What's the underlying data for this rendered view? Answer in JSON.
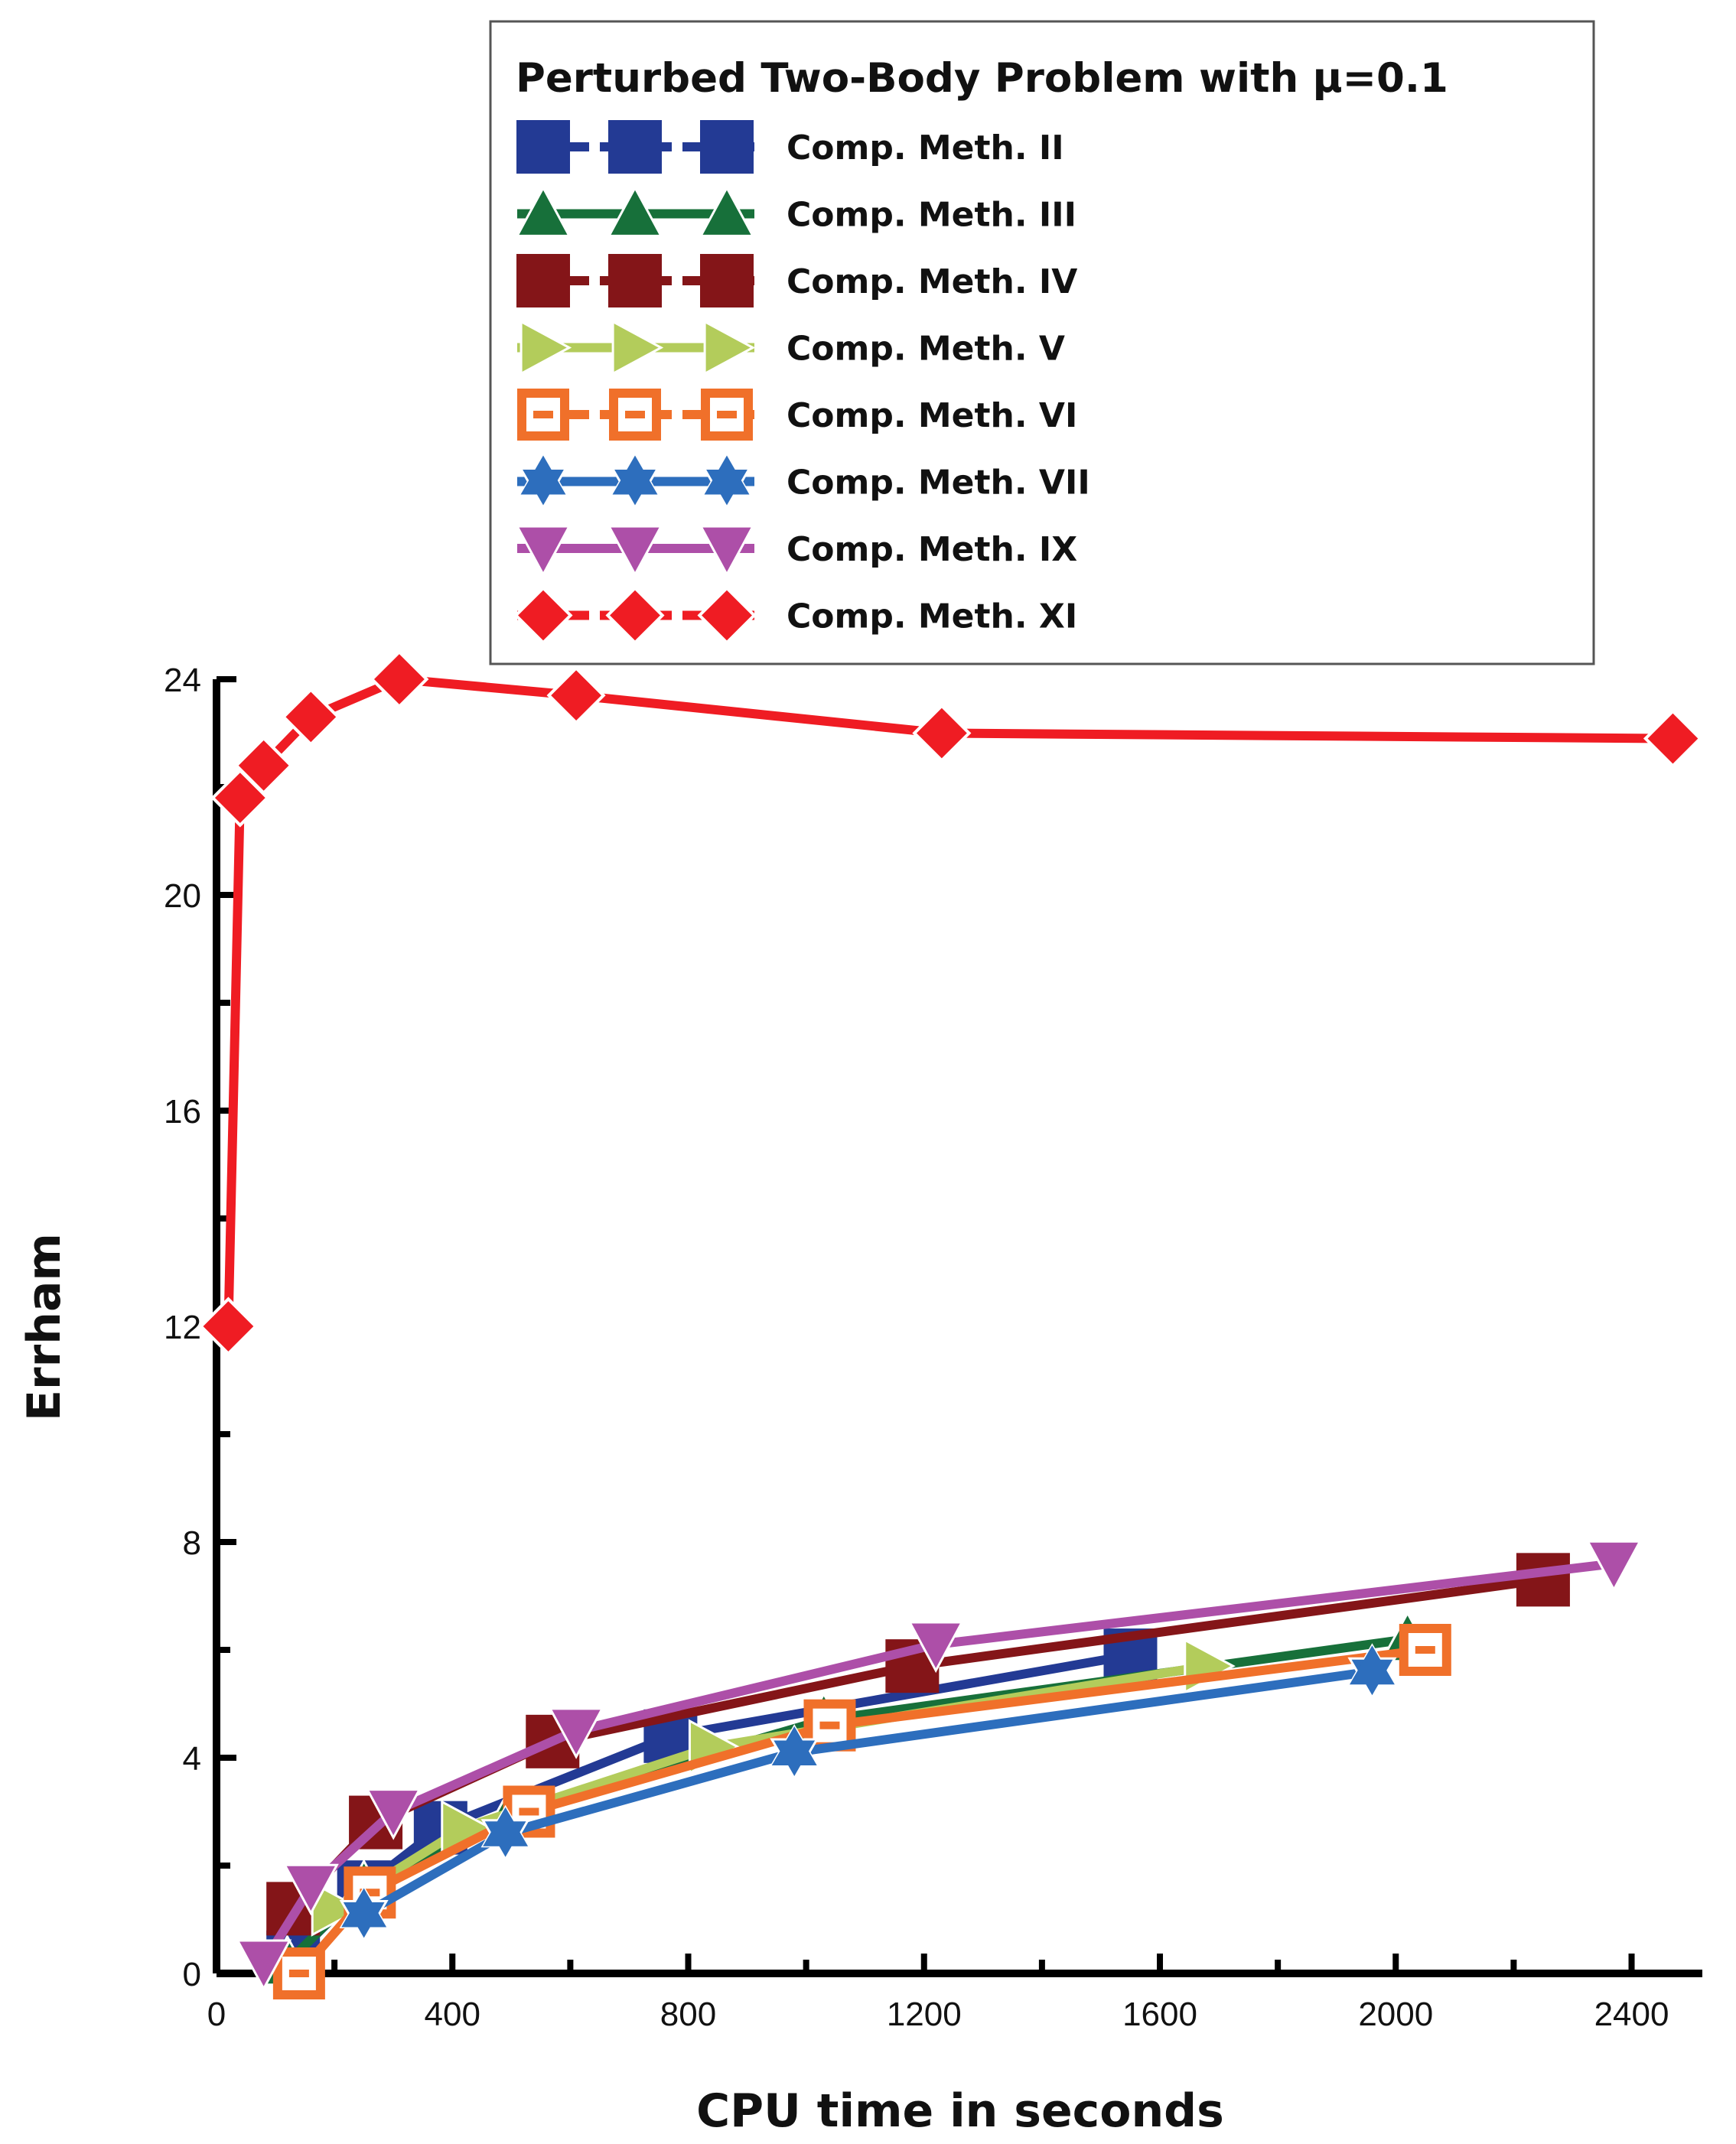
{
  "chart_data": {
    "type": "line",
    "title": "Perturbed Two-Body Problem with μ=0.1",
    "xlabel": "CPU time in seconds",
    "ylabel": "Errham",
    "xlim": [
      0,
      2520
    ],
    "ylim": [
      0,
      24
    ],
    "xticks": [
      "0",
      "400",
      "800",
      "1200",
      "1600",
      "2000",
      "2400"
    ],
    "yticks": [
      "0",
      "4",
      "8",
      "12",
      "16",
      "20",
      "24"
    ],
    "legend_position": "top-right",
    "series": [
      {
        "name": "Comp. Meth. II",
        "color": "#233a94",
        "marker": "square",
        "x": [
          130,
          250,
          380,
          770,
          1550
        ],
        "y": [
          0.3,
          1.6,
          2.7,
          4.4,
          5.9
        ]
      },
      {
        "name": "Comp. Meth. III",
        "color": "#17703a",
        "marker": "triangle-up",
        "x": [
          120,
          250,
          500,
          1030,
          2020
        ],
        "y": [
          0.2,
          1.6,
          3.0,
          4.7,
          6.2
        ]
      },
      {
        "name": "Comp. Meth. IV",
        "color": "#841518",
        "marker": "square",
        "x": [
          130,
          270,
          570,
          1180,
          2250
        ],
        "y": [
          1.2,
          2.8,
          4.3,
          5.7,
          7.3
        ]
      },
      {
        "name": "Comp. Meth. V",
        "color": "#b3cc5b",
        "marker": "triangle-right",
        "x": [
          200,
          420,
          840,
          1680
        ],
        "y": [
          1.2,
          2.7,
          4.2,
          5.7
        ]
      },
      {
        "name": "Comp. Meth. VI",
        "color": "#f0702a",
        "marker": "square-open",
        "x": [
          140,
          260,
          530,
          1040,
          2050
        ],
        "y": [
          0.0,
          1.5,
          3.0,
          4.6,
          6.0
        ]
      },
      {
        "name": "Comp. Meth. VII",
        "color": "#2d6ebd",
        "marker": "star",
        "x": [
          250,
          490,
          980,
          1960
        ],
        "y": [
          1.1,
          2.6,
          4.1,
          5.6
        ]
      },
      {
        "name": "Comp. Meth. IX",
        "color": "#ad4fa8",
        "marker": "triangle-down",
        "x": [
          80,
          160,
          300,
          610,
          1220,
          2370
        ],
        "y": [
          0.2,
          1.6,
          3.0,
          4.5,
          6.1,
          7.6
        ]
      },
      {
        "name": "Comp. Meth. XI",
        "color": "#ef1c23",
        "marker": "diamond",
        "x": [
          20,
          40,
          80,
          160,
          310,
          610,
          1230,
          2470
        ],
        "y": [
          12.0,
          21.8,
          22.4,
          23.3,
          24.0,
          23.7,
          23.0,
          22.9
        ]
      }
    ]
  }
}
